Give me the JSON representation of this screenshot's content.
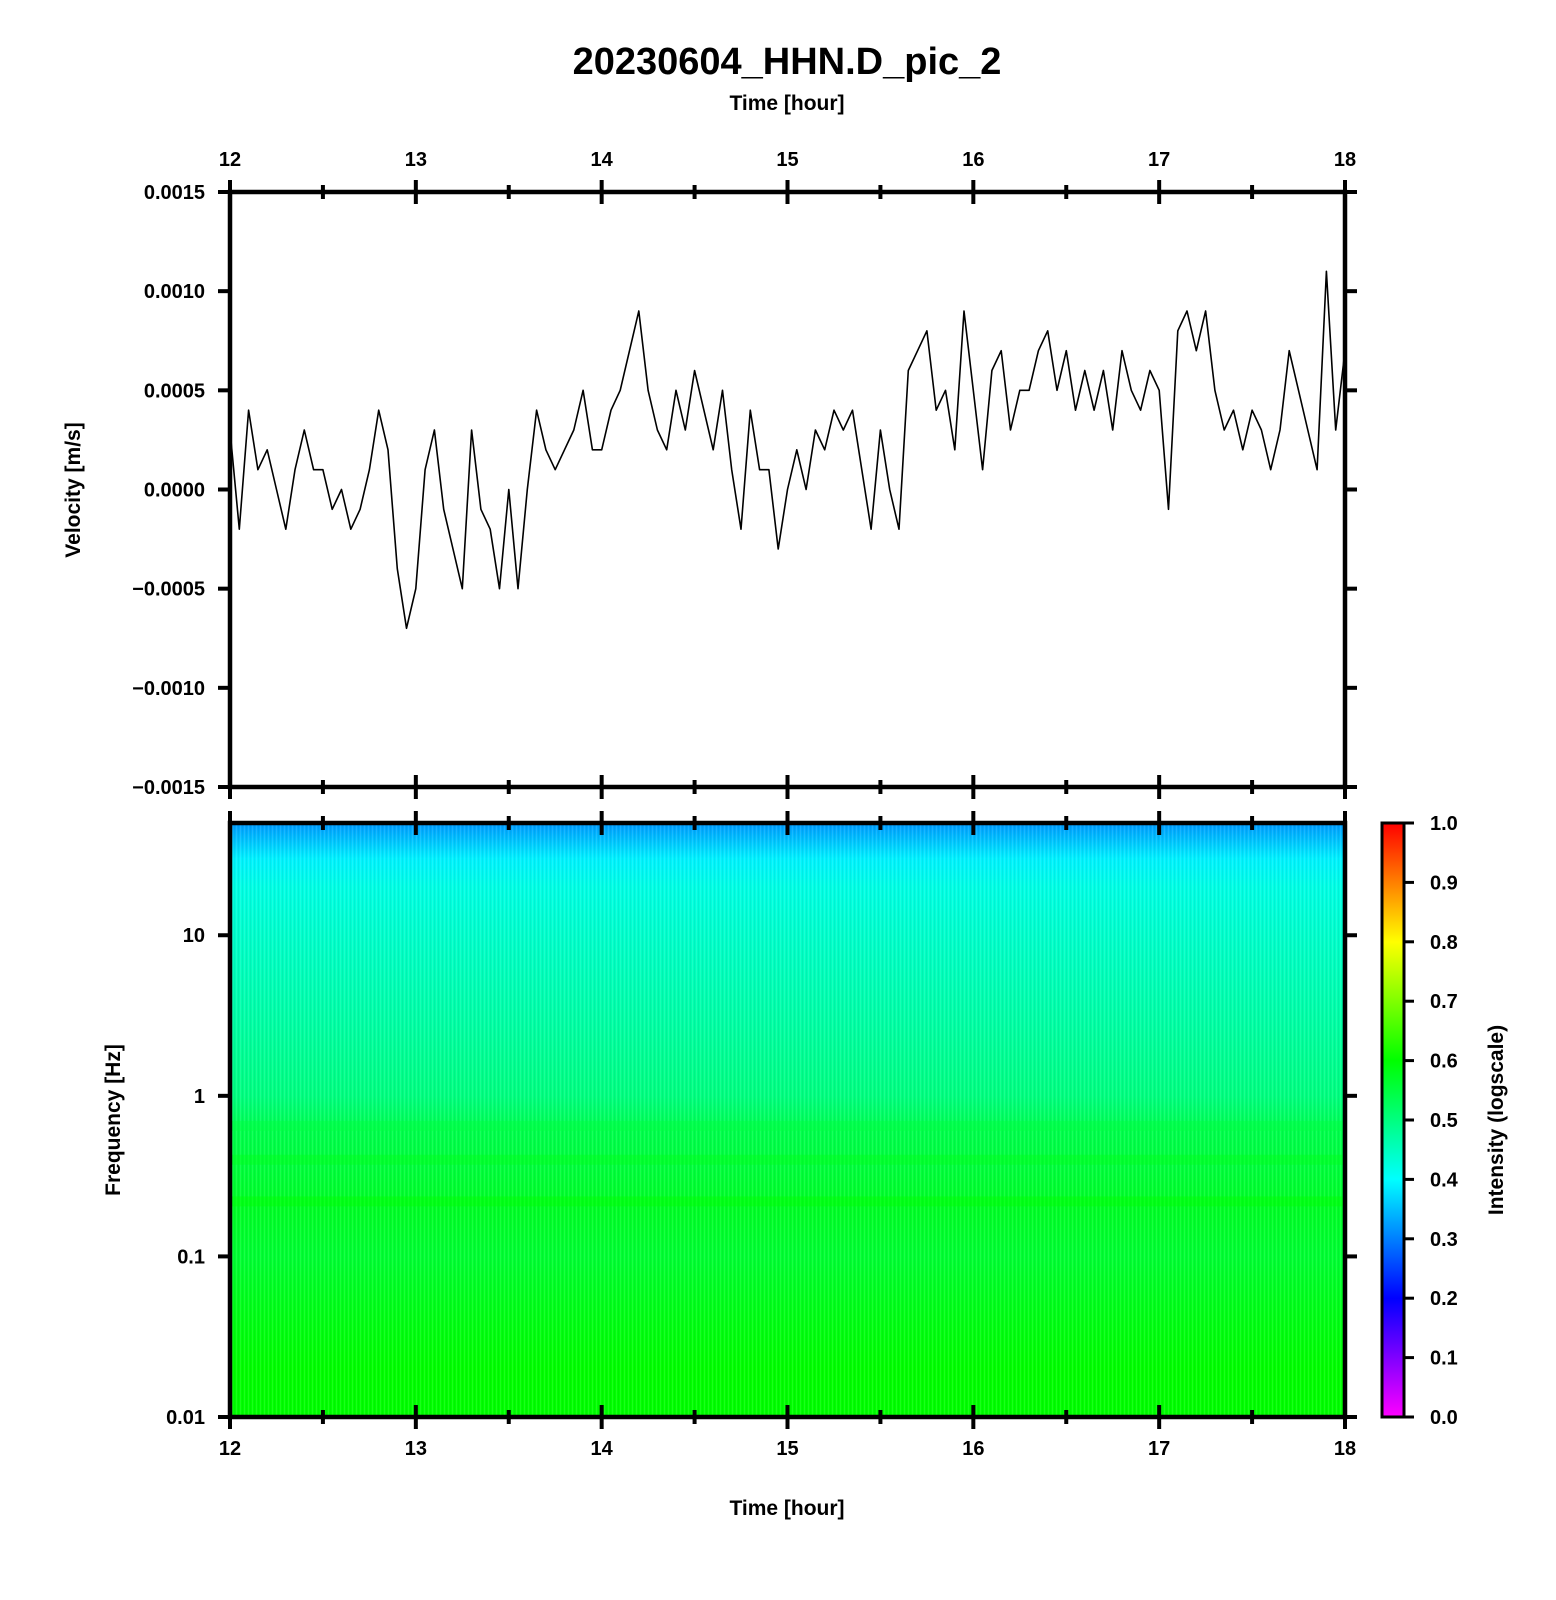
{
  "chart_data": [
    {
      "type": "line",
      "title": "20230604_HHN.D_pic_2",
      "xlabel": "Time [hour]",
      "ylabel": "Velocity [m/s]",
      "xlim": [
        12,
        18
      ],
      "ylim": [
        -0.0015,
        0.0015
      ],
      "x_ticks": [
        "12",
        "13",
        "14",
        "15",
        "16",
        "17",
        "18"
      ],
      "y_ticks": [
        "0.0015",
        "0.0010",
        "0.0005",
        "0.0000",
        "−0.0005",
        "−0.0010",
        "−0.0015"
      ],
      "grid": false,
      "series": [
        {
          "color": "#000000",
          "x": [
            12.0,
            12.05,
            12.1,
            12.15,
            12.2,
            12.25,
            12.3,
            12.35,
            12.4,
            12.45,
            12.5,
            12.55,
            12.6,
            12.65,
            12.7,
            12.75,
            12.8,
            12.85,
            12.9,
            12.95,
            13.0,
            13.05,
            13.1,
            13.15,
            13.2,
            13.25,
            13.3,
            13.35,
            13.4,
            13.45,
            13.5,
            13.55,
            13.6,
            13.65,
            13.7,
            13.75,
            13.8,
            13.85,
            13.9,
            13.95,
            14.0,
            14.05,
            14.1,
            14.15,
            14.2,
            14.25,
            14.3,
            14.35,
            14.4,
            14.45,
            14.5,
            14.55,
            14.6,
            14.65,
            14.7,
            14.75,
            14.8,
            14.85,
            14.9,
            14.95,
            15.0,
            15.05,
            15.1,
            15.15,
            15.2,
            15.25,
            15.3,
            15.35,
            15.4,
            15.45,
            15.5,
            15.55,
            15.6,
            15.65,
            15.7,
            15.75,
            15.8,
            15.85,
            15.9,
            15.95,
            16.0,
            16.05,
            16.1,
            16.15,
            16.2,
            16.25,
            16.3,
            16.35,
            16.4,
            16.45,
            16.5,
            16.55,
            16.6,
            16.65,
            16.7,
            16.75,
            16.8,
            16.85,
            16.9,
            16.95,
            17.0,
            17.05,
            17.1,
            17.15,
            17.2,
            17.25,
            17.3,
            17.35,
            17.4,
            17.45,
            17.5,
            17.55,
            17.6,
            17.65,
            17.7,
            17.75,
            17.8,
            17.85,
            17.9,
            17.95,
            18.0
          ],
          "y": [
            0.0003,
            -0.0002,
            0.0004,
            0.0001,
            0.0002,
            0.0,
            -0.0002,
            0.0001,
            0.0003,
            0.0001,
            0.0001,
            -0.0001,
            0.0,
            -0.0002,
            -0.0001,
            0.0001,
            0.0004,
            0.0002,
            -0.0004,
            -0.0007,
            -0.0005,
            0.0001,
            0.0003,
            -0.0001,
            -0.0003,
            -0.0005,
            0.0003,
            -0.0001,
            -0.0002,
            -0.0005,
            0.0,
            -0.0005,
            0.0,
            0.0004,
            0.0002,
            0.0001,
            0.0002,
            0.0003,
            0.0005,
            0.0002,
            0.0002,
            0.0004,
            0.0005,
            0.0007,
            0.0009,
            0.0005,
            0.0003,
            0.0002,
            0.0005,
            0.0003,
            0.0006,
            0.0004,
            0.0002,
            0.0005,
            0.0001,
            -0.0002,
            0.0004,
            0.0001,
            0.0001,
            -0.0003,
            0.0,
            0.0002,
            0.0,
            0.0003,
            0.0002,
            0.0004,
            0.0003,
            0.0004,
            0.0001,
            -0.0002,
            0.0003,
            0.0,
            -0.0002,
            0.0006,
            0.0007,
            0.0008,
            0.0004,
            0.0005,
            0.0002,
            0.0009,
            0.0005,
            0.0001,
            0.0006,
            0.0007,
            0.0003,
            0.0005,
            0.0005,
            0.0007,
            0.0008,
            0.0005,
            0.0007,
            0.0004,
            0.0006,
            0.0004,
            0.0006,
            0.0003,
            0.0007,
            0.0005,
            0.0004,
            0.0006,
            0.0005,
            -0.0001,
            0.0008,
            0.0009,
            0.0007,
            0.0009,
            0.0005,
            0.0003,
            0.0004,
            0.0002,
            0.0004,
            0.0003,
            0.0001,
            0.0003,
            0.0007,
            0.0005,
            0.0003,
            0.0001,
            0.0011,
            0.0003,
            0.0007
          ]
        }
      ]
    },
    {
      "type": "heatmap",
      "xlabel": "Time [hour]",
      "ylabel": "Frequency [Hz]",
      "xlim": [
        12,
        18
      ],
      "ylim": [
        0.01,
        50
      ],
      "yscale": "log",
      "x_ticks": [
        "12",
        "13",
        "14",
        "15",
        "16",
        "17",
        "18"
      ],
      "y_ticks": [
        "10",
        "1",
        "0.1",
        "0.01"
      ],
      "colorbar": {
        "label": "Intensity (logscale)",
        "range": [
          0.0,
          1.0
        ],
        "ticks": [
          "1.0",
          "0.9",
          "0.8",
          "0.7",
          "0.6",
          "0.5",
          "0.4",
          "0.3",
          "0.2",
          "0.1",
          "0.0"
        ],
        "colormap": [
          "#ff00ff",
          "#0000ff",
          "#00ffff",
          "#00ff00",
          "#ffff00",
          "#ff0000"
        ]
      },
      "frequency_profile": {
        "freq_hz": [
          50,
          40,
          30,
          20,
          10,
          3,
          1,
          0.6,
          0.4,
          0.2,
          0.1,
          0.05,
          0.02,
          0.01
        ],
        "intensity": [
          0.32,
          0.35,
          0.39,
          0.42,
          0.44,
          0.47,
          0.5,
          0.54,
          0.55,
          0.57,
          0.56,
          0.58,
          0.6,
          0.6
        ]
      }
    }
  ]
}
